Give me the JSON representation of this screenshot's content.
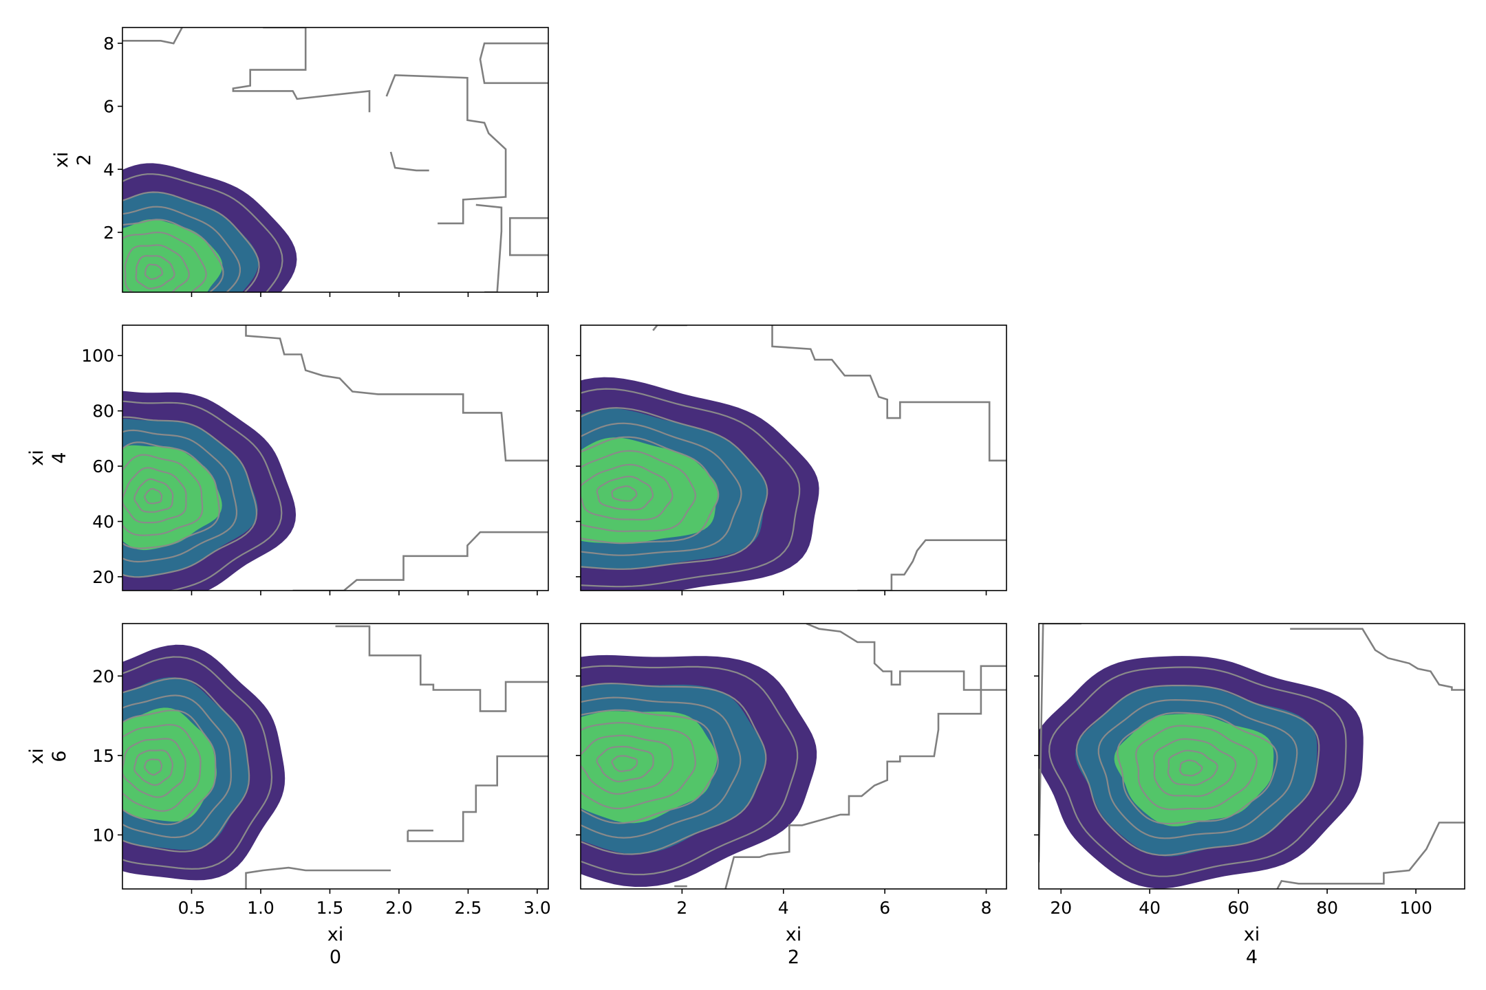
{
  "chart_data": [
    {
      "type": "contour",
      "panel": "xi0_vs_xi2",
      "x_variable": "0",
      "y_variable": "2",
      "ylabel": [
        "xi",
        "2"
      ],
      "xlim": [
        0.0,
        3.08
      ],
      "ylim": [
        0.1,
        8.5
      ],
      "xticks": [
        0.5,
        1.0,
        1.5,
        2.0,
        2.5,
        3.0
      ],
      "show_xtick_labels": false,
      "yticks": [
        2,
        4,
        6,
        8
      ],
      "yticklabels": [
        "2",
        "4",
        "6",
        "8"
      ],
      "density_center": [
        0.22,
        0.75
      ],
      "density_spread": [
        0.3,
        1.15
      ],
      "outline_extent": {
        "x_right": 1.3,
        "y_top": 4.4
      }
    },
    {
      "type": "contour",
      "panel": "xi0_vs_xi4",
      "x_variable": "0",
      "y_variable": "4",
      "ylabel": [
        "xi",
        "4"
      ],
      "xlim": [
        0.0,
        3.08
      ],
      "ylim": [
        15,
        111
      ],
      "xticks": [
        0.5,
        1.0,
        1.5,
        2.0,
        2.5,
        3.0
      ],
      "show_xtick_labels": false,
      "yticks": [
        20,
        40,
        60,
        80,
        100
      ],
      "yticklabels": [
        "20",
        "40",
        "60",
        "80",
        "100"
      ],
      "density_center": [
        0.22,
        49
      ],
      "density_spread": [
        0.3,
        13
      ],
      "outline_extent": {
        "x_right": 1.35,
        "y_top": 85,
        "y_bottom": 23
      }
    },
    {
      "type": "contour",
      "panel": "xi2_vs_xi4",
      "x_variable": "2",
      "y_variable": "4",
      "xlim": [
        0.0,
        8.4
      ],
      "ylim": [
        15,
        111
      ],
      "xticks": [
        2,
        4,
        6,
        8
      ],
      "show_xtick_labels": false,
      "yticks": [
        20,
        40,
        60,
        80,
        100
      ],
      "show_ytick_labels": false,
      "density_center": [
        0.85,
        50
      ],
      "density_spread": [
        1.2,
        13
      ],
      "outline_extent": {
        "x_right": 4.2,
        "y_top": 85,
        "y_bottom": 23
      }
    },
    {
      "type": "contour",
      "panel": "xi0_vs_xi6",
      "x_variable": "0",
      "y_variable": "6",
      "xlabel": [
        "xi",
        "0"
      ],
      "ylabel": [
        "xi",
        "6"
      ],
      "xlim": [
        0.0,
        3.08
      ],
      "ylim": [
        6.6,
        23.3
      ],
      "xticks": [
        0.5,
        1.0,
        1.5,
        2.0,
        2.5,
        3.0
      ],
      "xticklabels": [
        "0.5",
        "1.0",
        "1.5",
        "2.0",
        "2.5",
        "3.0"
      ],
      "yticks": [
        10,
        15,
        20
      ],
      "yticklabels": [
        "10",
        "15",
        "20"
      ],
      "density_center": [
        0.22,
        14.3
      ],
      "density_spread": [
        0.3,
        2.4
      ],
      "outline_extent": {
        "x_right": 1.35,
        "y_top": 20.1,
        "y_bottom": 9.0
      }
    },
    {
      "type": "contour",
      "panel": "xi2_vs_xi6",
      "x_variable": "2",
      "y_variable": "6",
      "xlabel": [
        "xi",
        "2"
      ],
      "xlim": [
        0.0,
        8.4
      ],
      "ylim": [
        6.6,
        23.3
      ],
      "xticks": [
        2,
        4,
        6,
        8
      ],
      "xticklabels": [
        "2",
        "4",
        "6",
        "8"
      ],
      "yticks": [
        10,
        15,
        20
      ],
      "show_ytick_labels": false,
      "density_center": [
        0.85,
        14.5
      ],
      "density_spread": [
        1.2,
        2.4
      ],
      "outline_extent": {
        "x_right": 4.2,
        "y_top": 20.0,
        "y_bottom": 9.2
      }
    },
    {
      "type": "contour",
      "panel": "xi4_vs_xi6",
      "x_variable": "4",
      "y_variable": "6",
      "xlabel": [
        "xi",
        "4"
      ],
      "xlim": [
        15,
        111
      ],
      "ylim": [
        6.6,
        23.3
      ],
      "xticks": [
        20,
        40,
        60,
        80,
        100
      ],
      "xticklabels": [
        "20",
        "40",
        "60",
        "80",
        "100"
      ],
      "yticks": [
        10,
        15,
        20
      ],
      "show_ytick_labels": false,
      "density_center": [
        49,
        14.2
      ],
      "density_spread": [
        12,
        2.4
      ],
      "outline_extent": {
        "x_left": 23,
        "x_right": 83,
        "y_top": 18.9,
        "y_bottom": 9.0
      }
    }
  ],
  "colors": {
    "outer_fill": "#472d7b",
    "middle_fill": "#2c6d8f",
    "inner_fill": "#53c569",
    "contour_line": "#8a8a8a",
    "boundary_line": "#7f7f7f",
    "axis": "#000000"
  }
}
